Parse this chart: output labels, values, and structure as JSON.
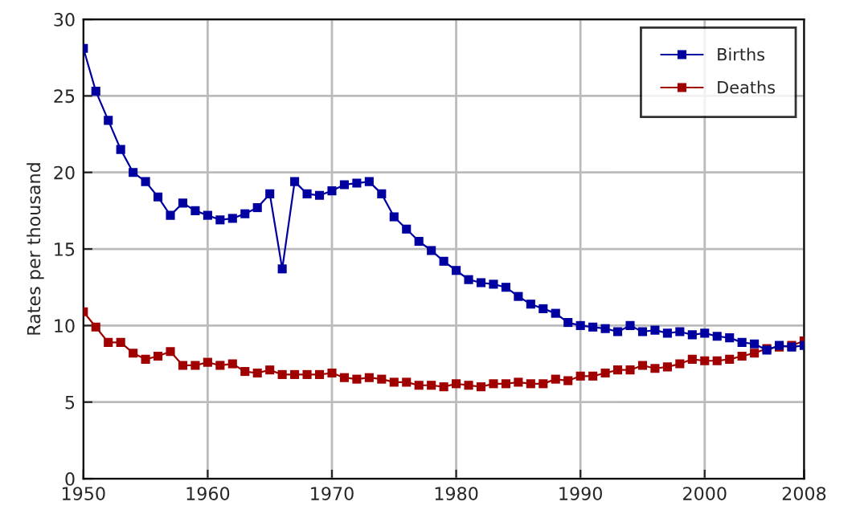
{
  "chart_data": {
    "type": "line",
    "ylabel": "Rates per thousand",
    "x": [
      1950,
      1951,
      1952,
      1953,
      1954,
      1955,
      1956,
      1957,
      1958,
      1959,
      1960,
      1961,
      1962,
      1963,
      1964,
      1965,
      1966,
      1967,
      1968,
      1969,
      1970,
      1971,
      1972,
      1973,
      1974,
      1975,
      1976,
      1977,
      1978,
      1979,
      1980,
      1981,
      1982,
      1983,
      1984,
      1985,
      1986,
      1987,
      1988,
      1989,
      1990,
      1991,
      1992,
      1993,
      1994,
      1995,
      1996,
      1997,
      1998,
      1999,
      2000,
      2001,
      2002,
      2003,
      2004,
      2005,
      2006,
      2007,
      2008
    ],
    "series": [
      {
        "name": "Births",
        "color": "#0000a0",
        "values": [
          28.1,
          25.3,
          23.4,
          21.5,
          20.0,
          19.4,
          18.4,
          17.2,
          18.0,
          17.5,
          17.2,
          16.9,
          17.0,
          17.3,
          17.7,
          18.6,
          13.7,
          19.4,
          18.6,
          18.5,
          18.8,
          19.2,
          19.3,
          19.4,
          18.6,
          17.1,
          16.3,
          15.5,
          14.9,
          14.2,
          13.6,
          13.0,
          12.8,
          12.7,
          12.5,
          11.9,
          11.4,
          11.1,
          10.8,
          10.2,
          10.0,
          9.9,
          9.8,
          9.6,
          10.0,
          9.6,
          9.7,
          9.5,
          9.6,
          9.4,
          9.5,
          9.3,
          9.2,
          8.9,
          8.8,
          8.4,
          8.7,
          8.6,
          8.7
        ]
      },
      {
        "name": "Deaths",
        "color": "#a00000",
        "values": [
          10.9,
          9.9,
          8.9,
          8.9,
          8.2,
          7.8,
          8.0,
          8.3,
          7.4,
          7.4,
          7.6,
          7.4,
          7.5,
          7.0,
          6.9,
          7.1,
          6.8,
          6.8,
          6.8,
          6.8,
          6.9,
          6.6,
          6.5,
          6.6,
          6.5,
          6.3,
          6.3,
          6.1,
          6.1,
          6.0,
          6.2,
          6.1,
          6.0,
          6.2,
          6.2,
          6.3,
          6.2,
          6.2,
          6.5,
          6.4,
          6.7,
          6.7,
          6.9,
          7.1,
          7.1,
          7.4,
          7.2,
          7.3,
          7.5,
          7.8,
          7.7,
          7.7,
          7.8,
          8.0,
          8.2,
          8.5,
          8.6,
          8.7,
          9.0
        ]
      }
    ],
    "xlim": [
      1950,
      2008
    ],
    "xticks": [
      1950,
      1960,
      1970,
      1980,
      1990,
      2000,
      2008
    ],
    "ylim": [
      0,
      30
    ],
    "yticks": [
      0,
      5,
      10,
      15,
      20,
      25,
      30
    ],
    "grid": true,
    "legend": "top right",
    "marker": "square",
    "line_style": "solid"
  }
}
